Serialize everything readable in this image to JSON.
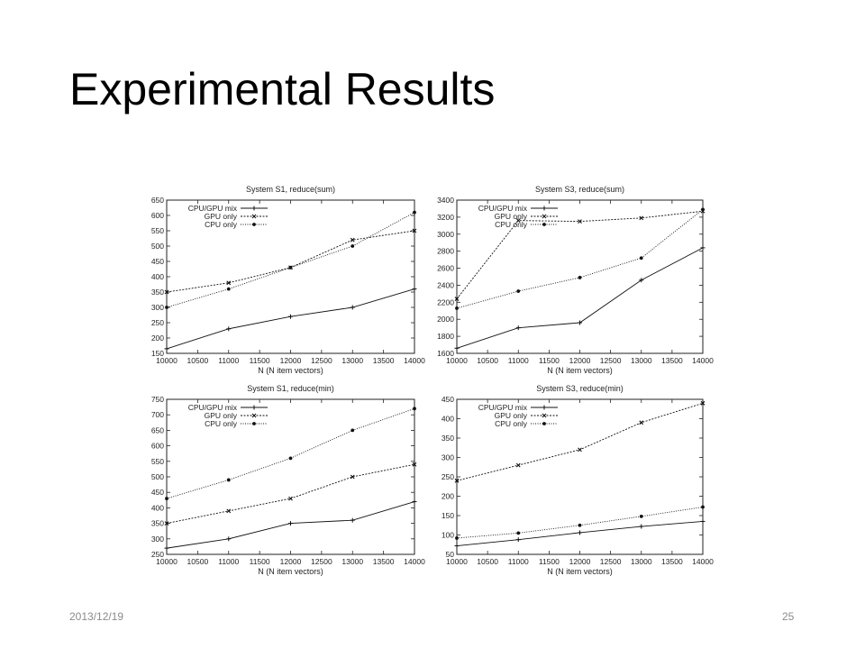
{
  "slide": {
    "title": "Experimental Results",
    "date": "2013/12/19",
    "page_number": "25"
  },
  "chart_data": [
    {
      "type": "line",
      "title": "System S1, reduce(sum)",
      "xlabel": "N (N item vectors)",
      "ylabel": "",
      "x": [
        10000,
        11000,
        12000,
        13000,
        14000
      ],
      "xlim": [
        10000,
        14000
      ],
      "xticks": [
        10000,
        10500,
        11000,
        11500,
        12000,
        12500,
        13000,
        13500,
        14000
      ],
      "ylim": [
        150,
        650
      ],
      "yticks": [
        150,
        200,
        250,
        300,
        350,
        400,
        450,
        500,
        550,
        600,
        650
      ],
      "grid": false,
      "legend": "top-left",
      "series": [
        {
          "name": "CPU/GPU mix",
          "values": [
            165,
            230,
            270,
            300,
            360
          ]
        },
        {
          "name": "GPU only",
          "values": [
            350,
            380,
            430,
            520,
            550
          ]
        },
        {
          "name": "CPU only",
          "values": [
            300,
            360,
            430,
            500,
            610
          ]
        }
      ]
    },
    {
      "type": "line",
      "title": "System S3, reduce(sum)",
      "xlabel": "N (N item vectors)",
      "ylabel": "",
      "x": [
        10000,
        11000,
        12000,
        13000,
        14000
      ],
      "xlim": [
        10000,
        14000
      ],
      "xticks": [
        10000,
        10500,
        11000,
        11500,
        12000,
        12500,
        13000,
        13500,
        14000
      ],
      "ylim": [
        1600,
        3400
      ],
      "yticks": [
        1600,
        1800,
        2000,
        2200,
        2400,
        2600,
        2800,
        3000,
        3200,
        3400
      ],
      "grid": false,
      "legend": "top-left",
      "series": [
        {
          "name": "CPU/GPU mix",
          "values": [
            1660,
            1900,
            1960,
            2460,
            2840
          ]
        },
        {
          "name": "GPU only",
          "values": [
            2240,
            3160,
            3150,
            3190,
            3270
          ]
        },
        {
          "name": "CPU only",
          "values": [
            2130,
            2330,
            2490,
            2720,
            3290
          ]
        }
      ]
    },
    {
      "type": "line",
      "title": "System S1, reduce(min)",
      "xlabel": "N (N item vectors)",
      "ylabel": "",
      "x": [
        10000,
        11000,
        12000,
        13000,
        14000
      ],
      "xlim": [
        10000,
        14000
      ],
      "xticks": [
        10000,
        10500,
        11000,
        11500,
        12000,
        12500,
        13000,
        13500,
        14000
      ],
      "ylim": [
        250,
        750
      ],
      "yticks": [
        250,
        300,
        350,
        400,
        450,
        500,
        550,
        600,
        650,
        700,
        750
      ],
      "grid": false,
      "legend": "top-left",
      "series": [
        {
          "name": "CPU/GPU mix",
          "values": [
            270,
            300,
            350,
            360,
            420
          ]
        },
        {
          "name": "GPU only",
          "values": [
            350,
            390,
            430,
            500,
            540
          ]
        },
        {
          "name": "CPU only",
          "values": [
            430,
            490,
            560,
            650,
            720
          ]
        }
      ]
    },
    {
      "type": "line",
      "title": "System S3, reduce(min)",
      "xlabel": "N (N item vectors)",
      "ylabel": "",
      "x": [
        10000,
        11000,
        12000,
        13000,
        14000
      ],
      "xlim": [
        10000,
        14000
      ],
      "xticks": [
        10000,
        10500,
        11000,
        11500,
        12000,
        12500,
        13000,
        13500,
        14000
      ],
      "ylim": [
        50,
        450
      ],
      "yticks": [
        50,
        100,
        150,
        200,
        250,
        300,
        350,
        400,
        450
      ],
      "grid": false,
      "legend": "top-left",
      "series": [
        {
          "name": "CPU/GPU mix",
          "values": [
            72,
            88,
            106,
            122,
            135
          ]
        },
        {
          "name": "GPU only",
          "values": [
            240,
            280,
            320,
            390,
            440
          ]
        },
        {
          "name": "CPU only",
          "values": [
            92,
            105,
            125,
            148,
            172
          ]
        }
      ]
    }
  ]
}
